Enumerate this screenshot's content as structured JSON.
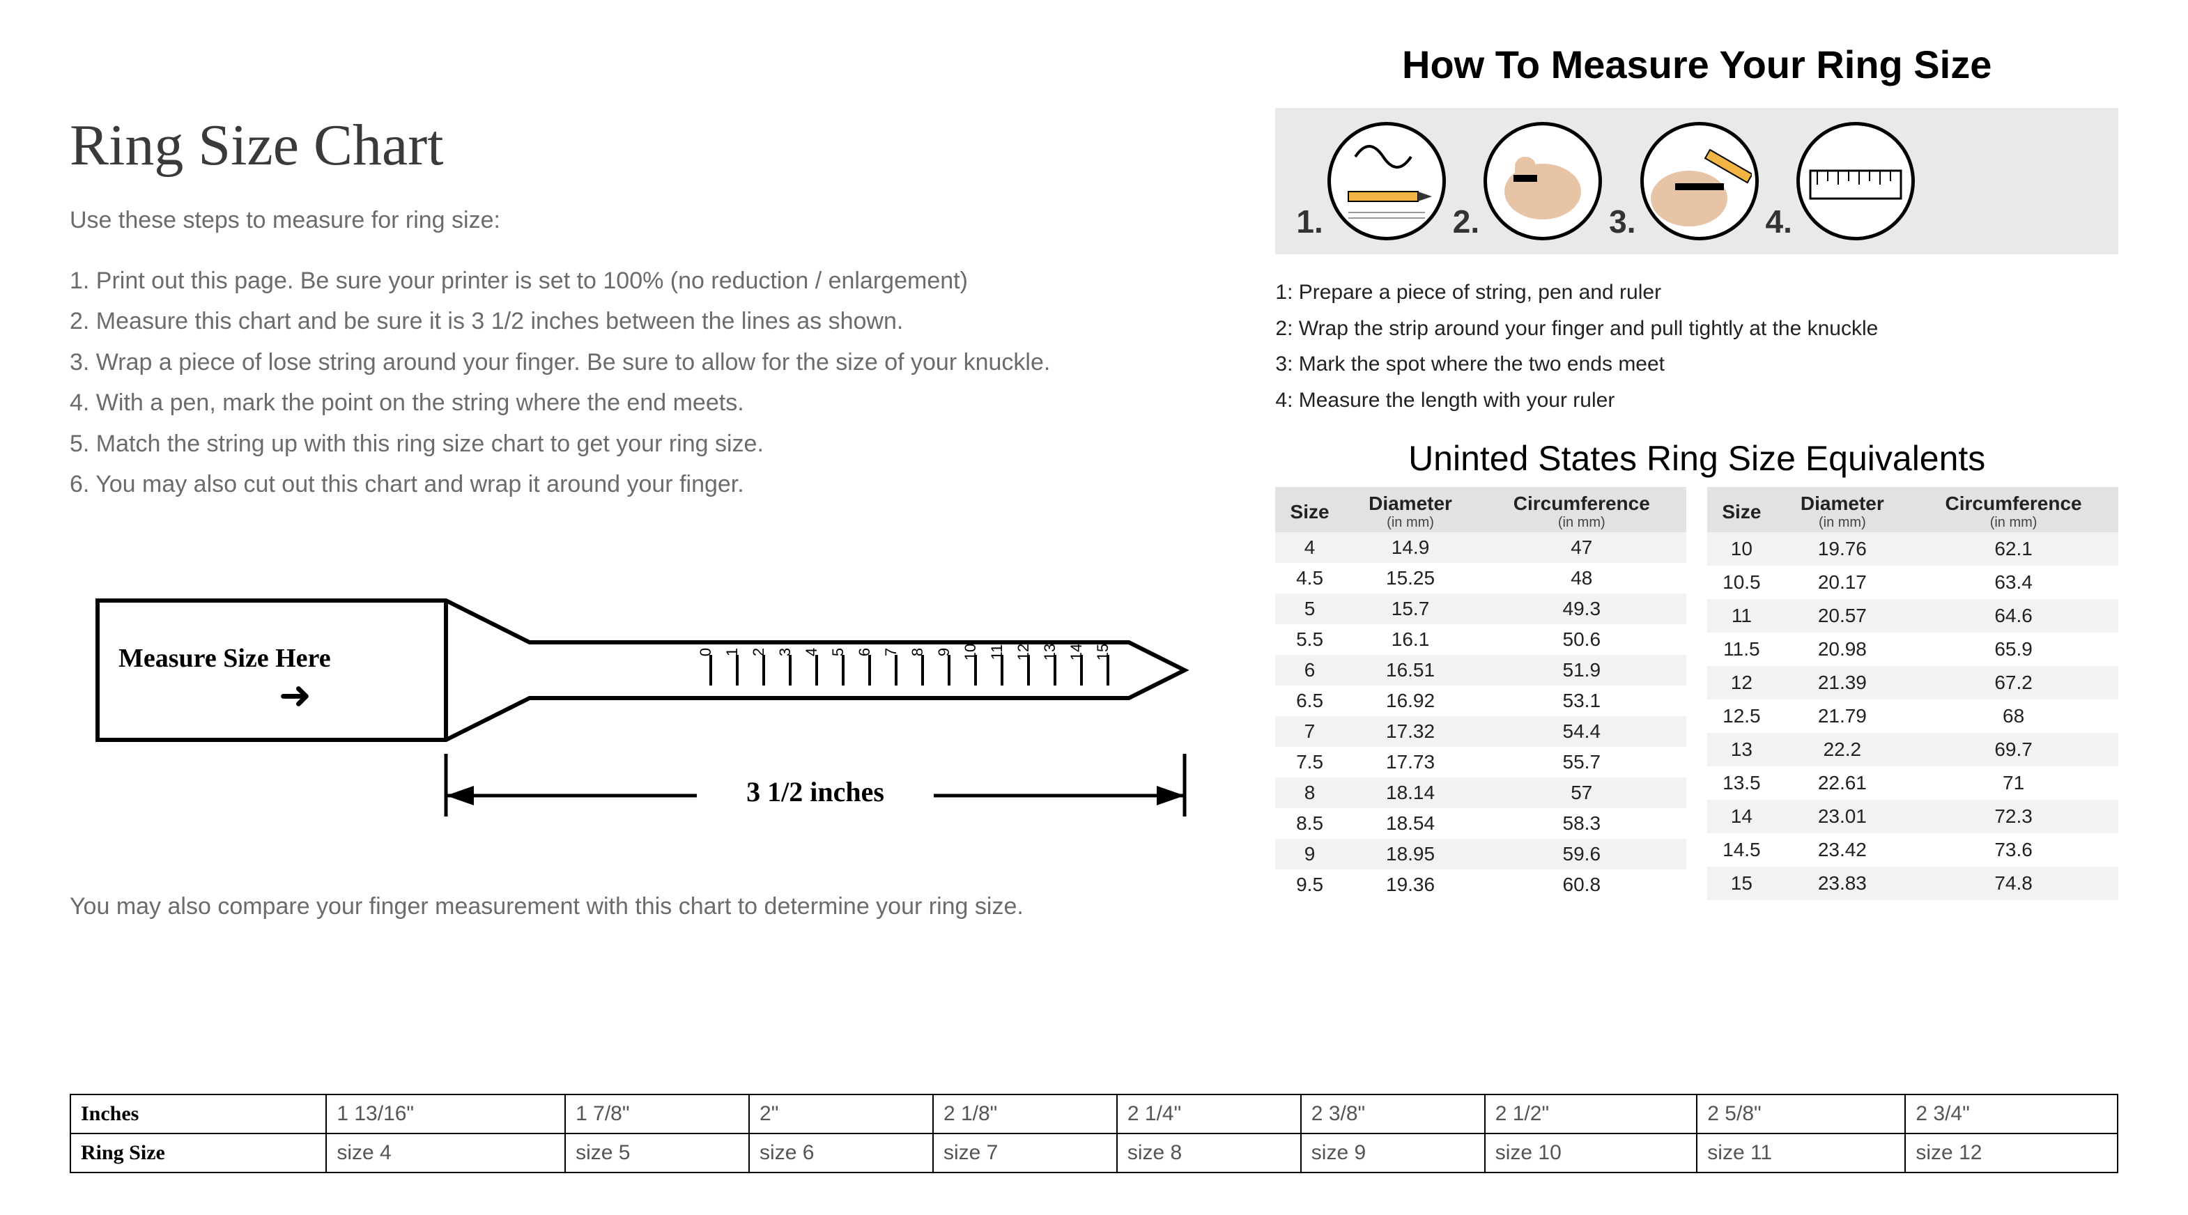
{
  "left": {
    "title": "Ring Size Chart",
    "intro": "Use these steps to measure for ring size:",
    "steps": [
      "1. Print out this page. Be sure your printer is set to 100% (no reduction / enlargement)",
      "2. Measure this chart and be sure it is 3 1/2 inches between the lines as shown.",
      "3. Wrap a piece of lose string around your finger. Be sure to allow for the size of your knuckle.",
      "4. With a pen, mark the point on the string where the end meets.",
      "5. Match the string up with this ring size chart to get your ring size.",
      "6. You may also cut out this chart and wrap it around your finger."
    ],
    "ruler": {
      "measure_label": "Measure Size Here",
      "arrow_glyph": "➜",
      "ticks": [
        "0",
        "1",
        "2",
        "3",
        "4",
        "5",
        "6",
        "7",
        "8",
        "9",
        "10",
        "11",
        "12",
        "13",
        "14",
        "15"
      ],
      "span_label": "3 1/2 inches",
      "stroke_color": "#000000",
      "stroke_width": 6
    },
    "compare_text": "You may also compare your finger measurement with this chart to determine your ring size."
  },
  "right": {
    "title": "How To Measure Your Ring Size",
    "illustration_numbers": [
      "1.",
      "2.",
      "3.",
      "4."
    ],
    "pencil_color": "#f2b544",
    "skin_color": "#e7c4a6",
    "steps": [
      "1: Prepare a piece of string, pen and ruler",
      "2: Wrap the strip around your finger and pull tightly at the knuckle",
      "3: Mark the spot where the two ends meet",
      "4: Measure the length with your ruler"
    ],
    "equiv_title": "Uninted States Ring Size Equivalents",
    "equiv_headers": {
      "size": "Size",
      "diameter": "Diameter",
      "circumference": "Circumference",
      "unit": "(in mm)"
    },
    "equiv_left": [
      {
        "size": "4",
        "d": "14.9",
        "c": "47"
      },
      {
        "size": "4.5",
        "d": "15.25",
        "c": "48"
      },
      {
        "size": "5",
        "d": "15.7",
        "c": "49.3"
      },
      {
        "size": "5.5",
        "d": "16.1",
        "c": "50.6"
      },
      {
        "size": "6",
        "d": "16.51",
        "c": "51.9"
      },
      {
        "size": "6.5",
        "d": "16.92",
        "c": "53.1"
      },
      {
        "size": "7",
        "d": "17.32",
        "c": "54.4"
      },
      {
        "size": "7.5",
        "d": "17.73",
        "c": "55.7"
      },
      {
        "size": "8",
        "d": "18.14",
        "c": "57"
      },
      {
        "size": "8.5",
        "d": "18.54",
        "c": "58.3"
      },
      {
        "size": "9",
        "d": "18.95",
        "c": "59.6"
      },
      {
        "size": "9.5",
        "d": "19.36",
        "c": "60.8"
      }
    ],
    "equiv_right": [
      {
        "size": "10",
        "d": "19.76",
        "c": "62.1"
      },
      {
        "size": "10.5",
        "d": "20.17",
        "c": "63.4"
      },
      {
        "size": "11",
        "d": "20.57",
        "c": "64.6"
      },
      {
        "size": "11.5",
        "d": "20.98",
        "c": "65.9"
      },
      {
        "size": "12",
        "d": "21.39",
        "c": "67.2"
      },
      {
        "size": "12.5",
        "d": "21.79",
        "c": "68"
      },
      {
        "size": "13",
        "d": "22.2",
        "c": "69.7"
      },
      {
        "size": "13.5",
        "d": "22.61",
        "c": "71"
      },
      {
        "size": "14",
        "d": "23.01",
        "c": "72.3"
      },
      {
        "size": "14.5",
        "d": "23.42",
        "c": "73.6"
      },
      {
        "size": "15",
        "d": "23.83",
        "c": "74.8"
      }
    ]
  },
  "bottom": {
    "row1_label": "Inches",
    "row2_label": "Ring Size",
    "cells": [
      {
        "inches": "1 13/16\"",
        "size": "size 4"
      },
      {
        "inches": "1 7/8\"",
        "size": "size 5"
      },
      {
        "inches": "2\"",
        "size": "size 6"
      },
      {
        "inches": "2 1/8\"",
        "size": "size 7"
      },
      {
        "inches": "2 1/4\"",
        "size": "size 8"
      },
      {
        "inches": "2 3/8\"",
        "size": "size 9"
      },
      {
        "inches": "2 1/2\"",
        "size": "size 10"
      },
      {
        "inches": "2 5/8\"",
        "size": "size 11"
      },
      {
        "inches": "2 3/4\"",
        "size": "size 12"
      }
    ]
  },
  "colors": {
    "page_bg": "#ffffff",
    "text_gray": "#6b6b6b",
    "text_black": "#000000",
    "strip_bg": "#e9e9e9",
    "zebra_bg": "#f2f2f2",
    "table_header_bg": "#e2e2e2",
    "border": "#000000"
  }
}
